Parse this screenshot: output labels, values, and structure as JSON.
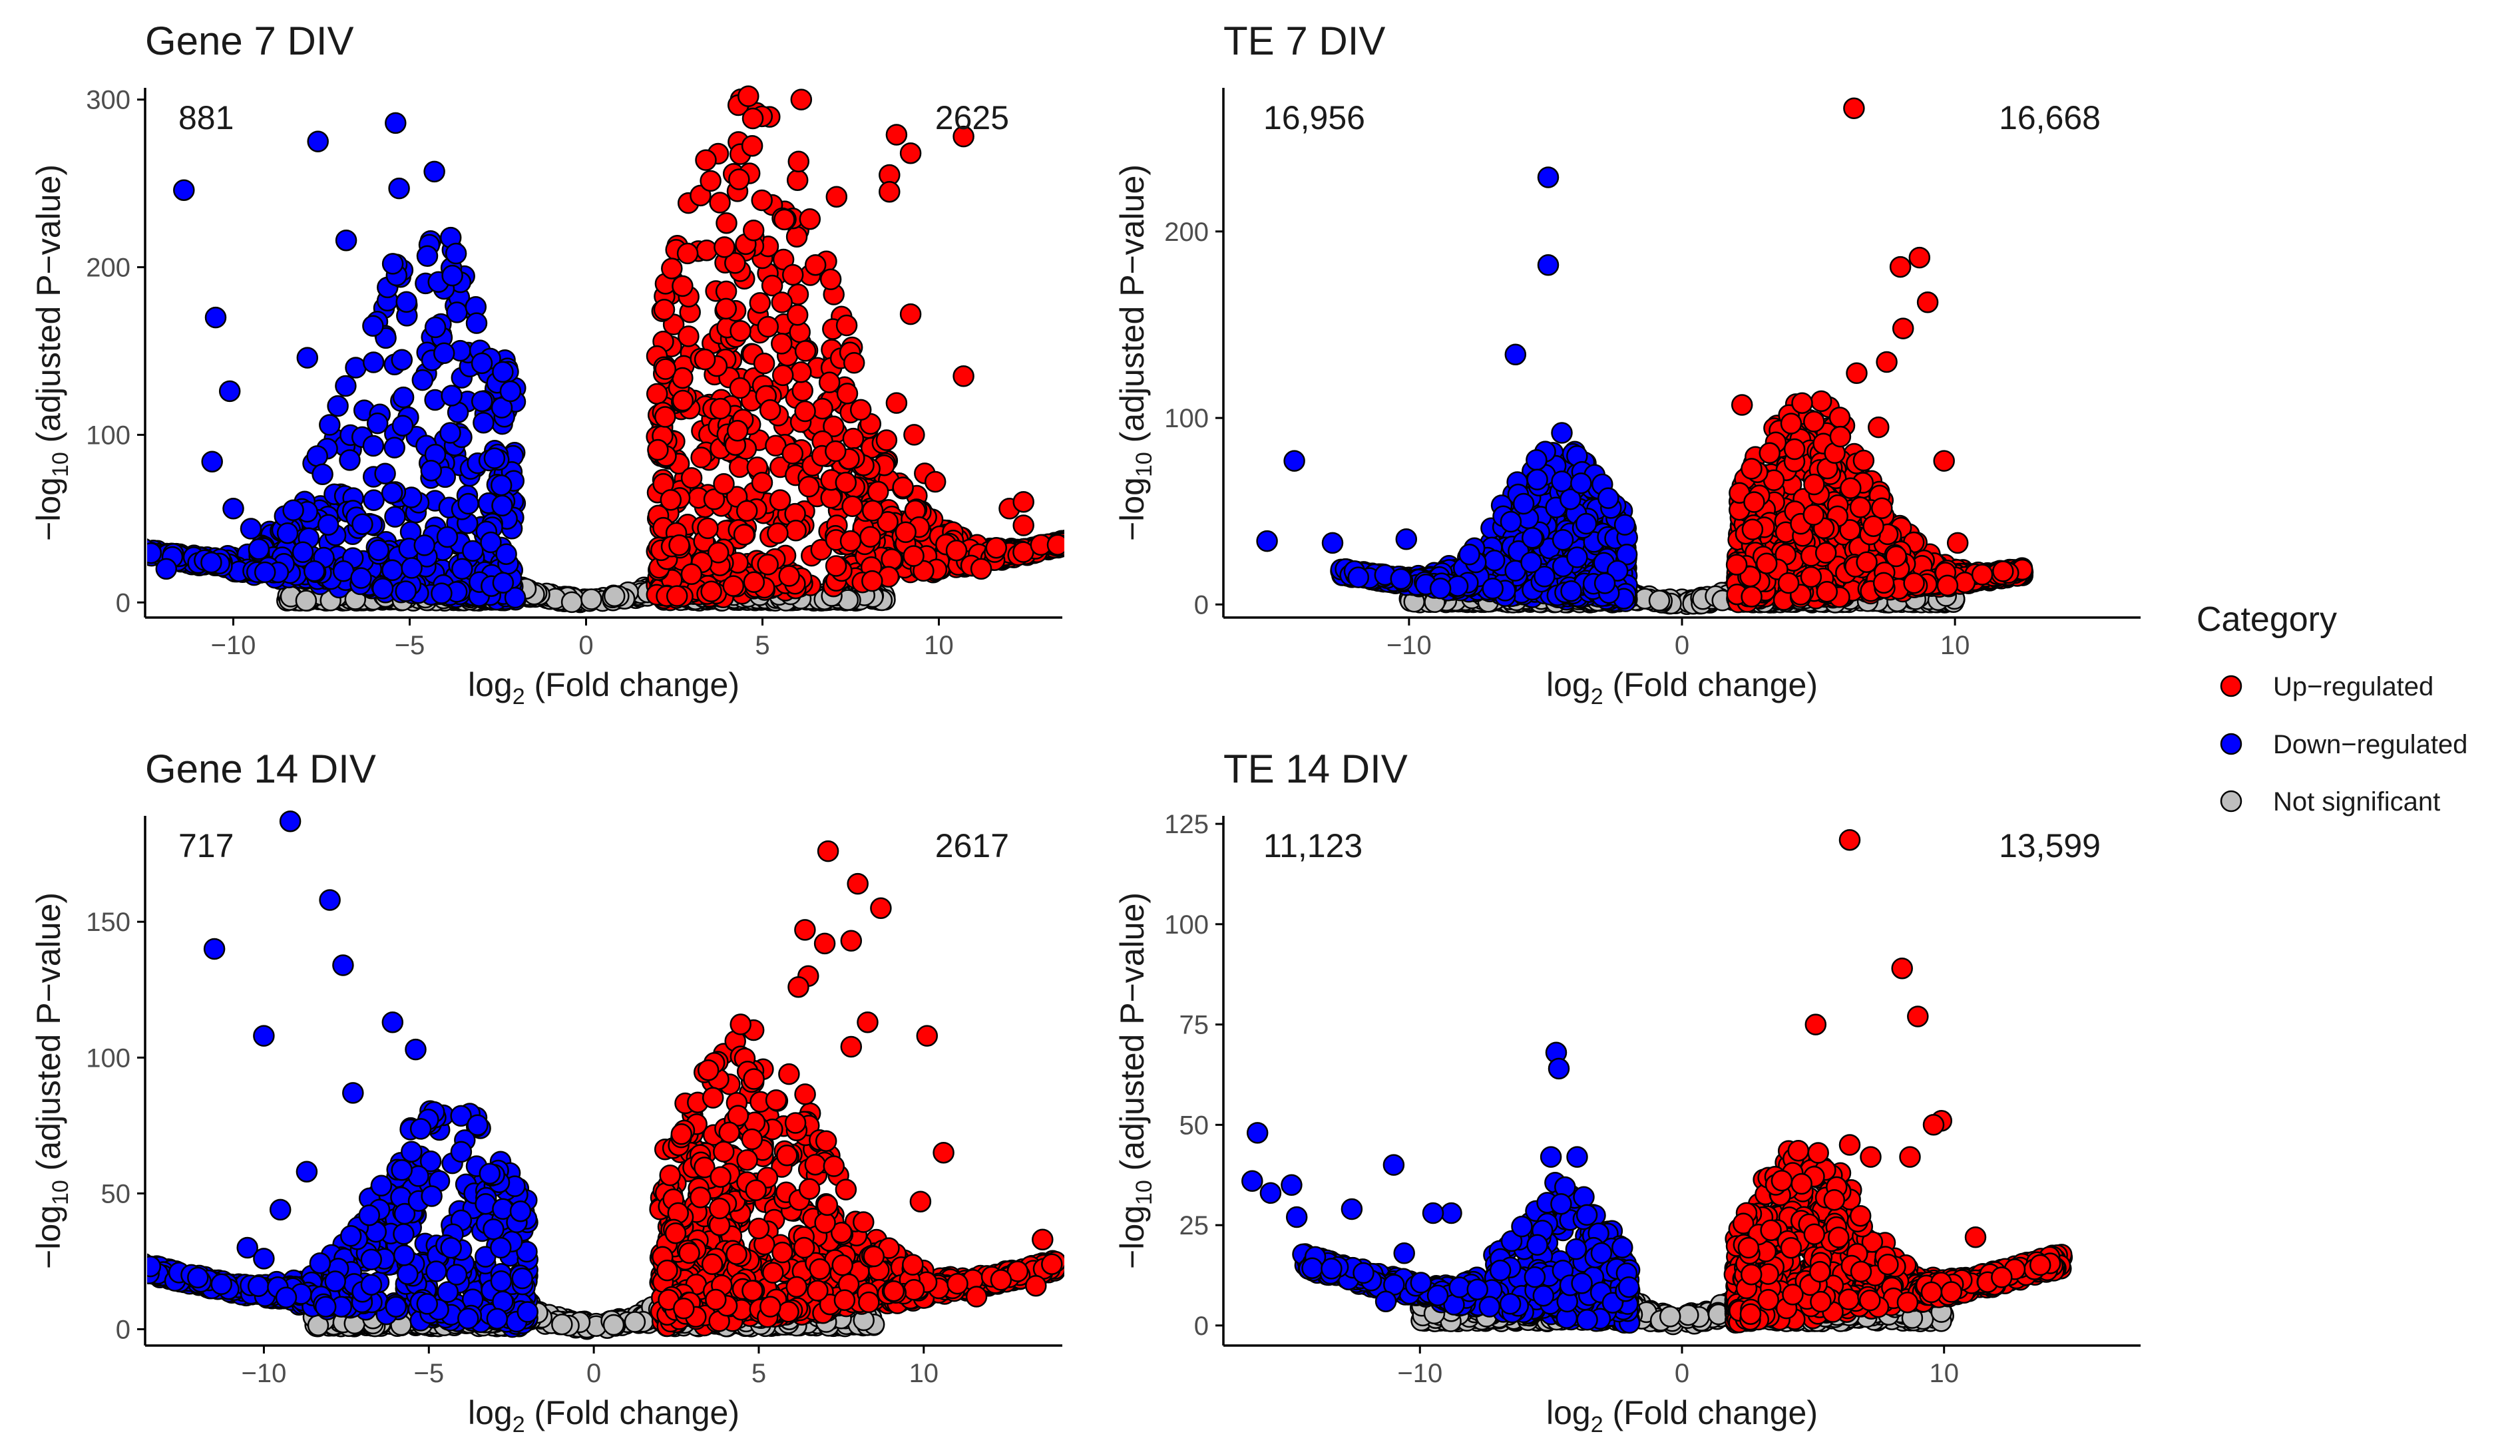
{
  "colors": {
    "up": "#ff0000",
    "down": "#0000ff",
    "ns": "#bebebe",
    "outline": "#000000",
    "axis": "#000000",
    "tick_text": "#4d4d4d"
  },
  "legend": {
    "title": "Category",
    "items": [
      {
        "label": "Up−regulated",
        "color": "#ff0000"
      },
      {
        "label": "Down−regulated",
        "color": "#0000ff"
      },
      {
        "label": "Not significant",
        "color": "#bebebe"
      }
    ]
  },
  "chart_data": [
    {
      "type": "scatter",
      "title": "Gene 7 DIV",
      "xlabel_base": "log",
      "xlabel_sub": "2",
      "xlabel_rest": " (Fold change)",
      "ylabel_pre": "−log",
      "ylabel_sub": "10",
      "ylabel_rest": " (adjusted P−value)",
      "xlim": [
        -12.5,
        13.5
      ],
      "ylim": [
        -9,
        307
      ],
      "xticks": [
        -10,
        -5,
        0,
        5,
        10
      ],
      "xtick_labels": [
        "−10",
        "−5",
        "0",
        "5",
        "10"
      ],
      "yticks": [
        0,
        100,
        200,
        300
      ],
      "ytick_labels": [
        "0",
        "100",
        "200",
        "300"
      ],
      "down_count": "881",
      "up_count": "2625",
      "seed": 11,
      "gen": {
        "dens": 15,
        "ymax": 300,
        "spread": 3.5,
        "tail": 12.5,
        "curve": 0.12,
        "ncount": 700
      },
      "outliers_up": [
        [
          4.6,
          302
        ],
        [
          6.1,
          300
        ],
        [
          8.8,
          279
        ],
        [
          10.7,
          278
        ],
        [
          9.2,
          268
        ],
        [
          8.6,
          255
        ],
        [
          8.6,
          245
        ],
        [
          7.1,
          242
        ],
        [
          9.2,
          172
        ],
        [
          10.7,
          135
        ],
        [
          8.8,
          119
        ],
        [
          9.3,
          100
        ],
        [
          9.6,
          77
        ],
        [
          9.9,
          72
        ],
        [
          12.0,
          56
        ],
        [
          12.4,
          60
        ],
        [
          12.4,
          46
        ],
        [
          10.5,
          31
        ],
        [
          11.2,
          20
        ]
      ],
      "outliers_down": [
        [
          -11.4,
          246
        ],
        [
          -10.5,
          170
        ],
        [
          -10.1,
          126
        ],
        [
          -10.6,
          84
        ],
        [
          -10.0,
          56
        ],
        [
          -7.6,
          275
        ],
        [
          -6.8,
          216
        ],
        [
          -5.4,
          286
        ],
        [
          -4.3,
          257
        ],
        [
          -5.3,
          247
        ],
        [
          -7.9,
          146
        ],
        [
          -11.9,
          20
        ],
        [
          -9.5,
          44
        ],
        [
          -9.1,
          18
        ],
        [
          -8.3,
          55
        ]
      ]
    },
    {
      "type": "scatter",
      "title": "TE 7 DIV",
      "xlabel_base": "log",
      "xlabel_sub": "2",
      "xlabel_rest": " (Fold change)",
      "ylabel_pre": "−log",
      "ylabel_sub": "10",
      "ylabel_rest": " (adjusted P−value)",
      "xlim": [
        -16.8,
        16.8
      ],
      "ylim": [
        -7,
        277
      ],
      "xticks": [
        -10,
        0,
        10
      ],
      "xtick_labels": [
        "−10",
        "0",
        "10"
      ],
      "yticks": [
        0,
        100,
        200
      ],
      "ytick_labels": [
        "0",
        "100",
        "200"
      ],
      "down_count": "16,956",
      "up_count": "16,668",
      "seed": 23,
      "gen": {
        "dens": 10,
        "ymax": 110,
        "spread": 3.2,
        "tail": 10.5,
        "curve": 0.1,
        "ncount": 650
      },
      "outliers_up": [
        [
          6.3,
          266
        ],
        [
          8.7,
          186
        ],
        [
          8.0,
          181
        ],
        [
          9.0,
          162
        ],
        [
          8.1,
          148
        ],
        [
          7.5,
          130
        ],
        [
          6.4,
          124
        ],
        [
          5.8,
          90
        ],
        [
          7.2,
          95
        ],
        [
          4.4,
          108
        ],
        [
          4.0,
          97
        ],
        [
          2.2,
          107
        ],
        [
          9.6,
          77
        ],
        [
          10.1,
          33
        ],
        [
          11.0,
          16
        ]
      ],
      "outliers_down": [
        [
          -4.9,
          229
        ],
        [
          -4.9,
          182
        ],
        [
          -6.1,
          134
        ],
        [
          -14.2,
          77
        ],
        [
          -15.2,
          34
        ],
        [
          -12.8,
          33
        ],
        [
          -10.1,
          35
        ],
        [
          -4.4,
          92
        ],
        [
          -5.3,
          67
        ],
        [
          -6.0,
          59
        ],
        [
          -5.8,
          54
        ],
        [
          -4.4,
          66
        ],
        [
          -3.7,
          65
        ],
        [
          -2.7,
          57
        ]
      ]
    },
    {
      "type": "scatter",
      "title": "Gene 14 DIV",
      "xlabel_base": "log",
      "xlabel_sub": "2",
      "xlabel_rest": " (Fold change)",
      "ylabel_pre": "−log",
      "ylabel_sub": "10",
      "ylabel_rest": " (adjusted P−value)",
      "xlim": [
        -13.6,
        14.2
      ],
      "ylim": [
        -6,
        189
      ],
      "xticks": [
        -10,
        -5,
        0,
        5,
        10
      ],
      "xtick_labels": [
        "−10",
        "−5",
        "0",
        "5",
        "10"
      ],
      "yticks": [
        0,
        50,
        100,
        150
      ],
      "ytick_labels": [
        "0",
        "50",
        "100",
        "150"
      ],
      "down_count": "717",
      "up_count": "2617",
      "seed": 37,
      "gen": {
        "dens": 11,
        "ymax": 110,
        "spread": 3.3,
        "tail": 12.0,
        "curve": 0.1,
        "ncount": 650
      },
      "outliers_up": [
        [
          7.1,
          176
        ],
        [
          8.0,
          164
        ],
        [
          8.7,
          155
        ],
        [
          7.8,
          143
        ],
        [
          6.4,
          147
        ],
        [
          7.0,
          142
        ],
        [
          6.5,
          130
        ],
        [
          6.2,
          126
        ],
        [
          8.3,
          113
        ],
        [
          10.1,
          108
        ],
        [
          7.8,
          104
        ],
        [
          10.6,
          65
        ],
        [
          9.9,
          47
        ],
        [
          11.6,
          12
        ],
        [
          13.6,
          33
        ],
        [
          13.4,
          16
        ]
      ],
      "outliers_down": [
        [
          -9.2,
          187
        ],
        [
          -11.5,
          140
        ],
        [
          -8.0,
          158
        ],
        [
          -7.6,
          134
        ],
        [
          -10.0,
          108
        ],
        [
          -6.1,
          113
        ],
        [
          -7.3,
          87
        ],
        [
          -8.7,
          58
        ],
        [
          -9.5,
          44
        ],
        [
          -10.5,
          30
        ],
        [
          -10.0,
          26
        ],
        [
          -12.2,
          20
        ],
        [
          -12.0,
          19
        ],
        [
          -5.4,
          103
        ]
      ]
    },
    {
      "type": "scatter",
      "title": "TE 14 DIV",
      "xlabel_base": "log",
      "xlabel_sub": "2",
      "xlabel_rest": " (Fold change)",
      "ylabel_pre": "−log",
      "ylabel_sub": "10",
      "ylabel_rest": " (adjusted P−value)",
      "xlim": [
        -17.5,
        17.5
      ],
      "ylim": [
        -5,
        127
      ],
      "xticks": [
        -10,
        0,
        10
      ],
      "xtick_labels": [
        "−10",
        "0",
        "10"
      ],
      "yticks": [
        0,
        25,
        50,
        75,
        100,
        125
      ],
      "ytick_labels": [
        "0",
        "25",
        "50",
        "75",
        "100",
        "125"
      ],
      "down_count": "11,123",
      "up_count": "13,599",
      "seed": 53,
      "gen": {
        "dens": 7.5,
        "ymax": 42,
        "spread": 3.0,
        "tail": 12.5,
        "curve": 0.09,
        "ncount": 650
      },
      "outliers_up": [
        [
          6.4,
          121
        ],
        [
          8.4,
          89
        ],
        [
          9.0,
          77
        ],
        [
          5.1,
          75
        ],
        [
          9.9,
          51
        ],
        [
          9.6,
          50
        ],
        [
          6.4,
          45
        ],
        [
          5.2,
          43
        ],
        [
          7.2,
          42
        ],
        [
          8.7,
          42
        ],
        [
          11.2,
          22
        ],
        [
          12.7,
          14
        ],
        [
          12.2,
          12
        ]
      ],
      "outliers_down": [
        [
          -4.8,
          68
        ],
        [
          -4.7,
          64
        ],
        [
          -16.2,
          48
        ],
        [
          -16.4,
          36
        ],
        [
          -14.9,
          35
        ],
        [
          -15.7,
          33
        ],
        [
          -11.0,
          40
        ],
        [
          -12.6,
          29
        ],
        [
          -14.7,
          27
        ],
        [
          -8.8,
          28
        ],
        [
          -9.5,
          28
        ],
        [
          -10.6,
          18
        ],
        [
          -11.3,
          6
        ],
        [
          -5.0,
          42
        ],
        [
          -4.0,
          42
        ]
      ]
    }
  ]
}
